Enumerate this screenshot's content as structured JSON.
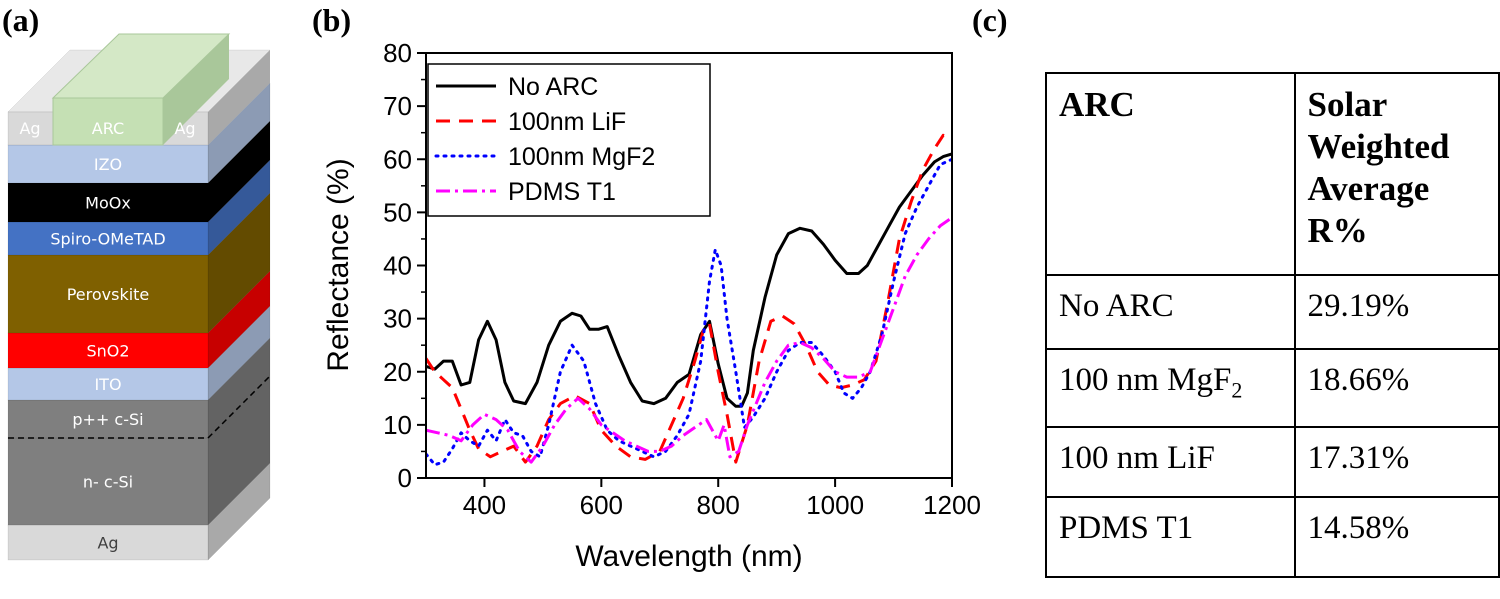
{
  "panel_labels": {
    "a": "(a)",
    "b": "(b)",
    "c": "(c)"
  },
  "stack": {
    "layers": [
      {
        "label": "Ag",
        "color": "#d9d9d9"
      },
      {
        "label": "n- c-Si",
        "color": "#7f7f7f"
      },
      {
        "label": "p++ c-Si",
        "color": "#7f7f7f"
      },
      {
        "label": "ITO",
        "color": "#b4c7e7"
      },
      {
        "label": "SnO2",
        "color": "#ff0000"
      },
      {
        "label": "Perovskite",
        "color": "#7f6000"
      },
      {
        "label": "Spiro-OMeTAD",
        "color": "#4472c4"
      },
      {
        "label": "MoOx",
        "color": "#000000"
      },
      {
        "label": "IZO",
        "color": "#b4c7e7"
      }
    ],
    "top": {
      "arc": "ARC",
      "ag_left": "Ag",
      "ag_right": "Ag",
      "arc_color": "#c5e0b4",
      "ag_color": "#d9d9d9"
    }
  },
  "chart_data": {
    "type": "line",
    "title": "",
    "xlabel": "Wavelength (nm)",
    "ylabel": "Reflectance (%)",
    "xlim": [
      300,
      1200
    ],
    "ylim": [
      0,
      80
    ],
    "xticks": [
      "400",
      "600",
      "800",
      "1000",
      "1200"
    ],
    "yticks": [
      "0",
      "10",
      "20",
      "30",
      "40",
      "50",
      "60",
      "70",
      "80"
    ],
    "legend_position": "top-left",
    "series": [
      {
        "name": "No ARC",
        "color": "#000000",
        "dash": "solid",
        "x": [
          300,
          315,
          330,
          345,
          360,
          375,
          390,
          405,
          420,
          435,
          450,
          470,
          490,
          510,
          530,
          550,
          565,
          580,
          595,
          610,
          630,
          650,
          670,
          690,
          710,
          730,
          750,
          770,
          785,
          800,
          815,
          830,
          840,
          850,
          860,
          880,
          900,
          920,
          940,
          960,
          980,
          1000,
          1020,
          1040,
          1055,
          1070,
          1090,
          1110,
          1130,
          1150,
          1170,
          1185,
          1200
        ],
        "y": [
          21,
          20.5,
          22,
          22,
          17.5,
          18,
          26,
          29.5,
          26,
          18,
          14.5,
          14,
          18,
          25,
          29.5,
          31,
          30.5,
          28,
          28,
          28.5,
          23,
          18,
          14.5,
          14,
          15,
          18,
          19.5,
          27,
          29.5,
          21.5,
          15,
          13.5,
          13.5,
          16,
          24,
          34,
          42,
          46,
          47,
          46.5,
          44,
          41,
          38.5,
          38.5,
          40,
          43,
          47,
          51,
          54,
          57,
          59.5,
          60.5,
          61
        ]
      },
      {
        "name": "100nm LiF",
        "color": "#ff0000",
        "dash": "14,9",
        "x": [
          300,
          315,
          330,
          345,
          360,
          375,
          390,
          410,
          430,
          450,
          470,
          490,
          510,
          530,
          555,
          580,
          600,
          625,
          650,
          675,
          700,
          720,
          740,
          760,
          775,
          785,
          800,
          815,
          830,
          850,
          870,
          890,
          910,
          930,
          950,
          970,
          990,
          1010,
          1030,
          1050,
          1070,
          1090,
          1110,
          1130,
          1150,
          1170,
          1185,
          1200
        ],
        "y": [
          22.5,
          20,
          18.5,
          17,
          13,
          9,
          5.5,
          4,
          5,
          6,
          3,
          6,
          11,
          14,
          15.5,
          14,
          9,
          6,
          4,
          3.5,
          5,
          10,
          15,
          22,
          28,
          29,
          20,
          12,
          3,
          10,
          22,
          29.5,
          30.5,
          29,
          25,
          20,
          17.5,
          17,
          17.5,
          18.5,
          22,
          33,
          45,
          52,
          58,
          62,
          64.5,
          64
        ]
      },
      {
        "name": "100nm MgF2",
        "color": "#0000ff",
        "dash": "2,6",
        "x": [
          300,
          315,
          330,
          345,
          360,
          375,
          390,
          405,
          420,
          435,
          450,
          465,
          480,
          495,
          510,
          530,
          550,
          570,
          590,
          610,
          630,
          650,
          670,
          690,
          710,
          730,
          750,
          770,
          785,
          795,
          805,
          815,
          830,
          845,
          860,
          880,
          900,
          920,
          940,
          960,
          980,
          1000,
          1015,
          1030,
          1045,
          1060,
          1080,
          1100,
          1120,
          1140,
          1160,
          1180,
          1200
        ],
        "y": [
          4.5,
          2.5,
          3,
          5.5,
          8.5,
          7,
          6,
          9,
          7,
          11,
          8.5,
          8,
          5,
          4,
          10,
          20,
          25,
          22,
          14,
          9,
          7,
          6,
          5,
          4,
          5,
          8,
          12,
          22,
          37,
          43,
          40,
          30,
          20,
          9.5,
          11.5,
          15,
          20,
          24,
          25.5,
          25.5,
          23,
          20,
          16,
          15,
          17,
          20,
          27,
          37,
          46,
          51,
          55,
          59,
          60
        ]
      },
      {
        "name": "PDMS T1",
        "color": "#ff00ff",
        "dash": "14,5,3,5",
        "x": [
          300,
          320,
          340,
          360,
          380,
          400,
          420,
          440,
          460,
          480,
          500,
          520,
          540,
          560,
          580,
          600,
          620,
          640,
          660,
          680,
          700,
          720,
          740,
          760,
          780,
          800,
          810,
          820,
          835,
          850,
          865,
          880,
          900,
          920,
          940,
          960,
          980,
          1000,
          1020,
          1040,
          1060,
          1080,
          1100,
          1120,
          1140,
          1160,
          1180,
          1200
        ],
        "y": [
          9,
          8.5,
          8,
          7,
          10,
          12,
          11,
          9,
          5,
          3,
          6,
          10,
          13,
          15,
          13,
          10,
          8.5,
          7,
          6,
          5,
          5,
          6,
          8,
          9.5,
          11,
          7,
          10,
          4,
          5,
          10,
          14,
          18,
          22,
          25,
          25.5,
          24.5,
          22.5,
          20,
          19,
          19,
          20,
          26,
          32,
          38,
          42,
          45,
          47.5,
          49
        ]
      }
    ]
  },
  "table": {
    "headers": {
      "arc": "ARC",
      "swa": [
        "Solar",
        "Weighted",
        "Average",
        "R%"
      ]
    },
    "rows": [
      {
        "arc": "No ARC",
        "value": "29.19%"
      },
      {
        "arc_prefix": "100 nm MgF",
        "arc_sub": "2",
        "value": "18.66%"
      },
      {
        "arc": "100 nm LiF",
        "value": "17.31%"
      },
      {
        "arc": "PDMS T1",
        "value": "14.58%"
      }
    ]
  }
}
